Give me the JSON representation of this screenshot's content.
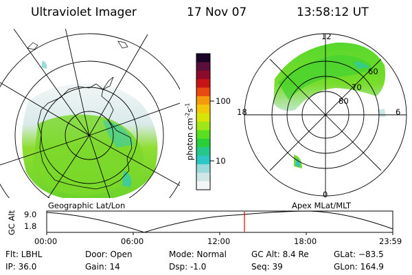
{
  "header": {
    "instrument": "Ultraviolet Imager",
    "date": "17 Nov 07",
    "time": "13:58:12 UT"
  },
  "left_panel": {
    "caption": "Geographic Lat/Lon"
  },
  "right_panel": {
    "caption": "Apex MLat/MLT",
    "mlt_labels": {
      "top": "12",
      "left": "18",
      "right": "6",
      "bottom": "0"
    },
    "mlat_labels": [
      "60",
      "70",
      "80"
    ]
  },
  "colorbar": {
    "unit_label": "photon cm",
    "unit_exp1": "-2",
    "unit_s": "s",
    "unit_exp2": "-1",
    "ticks": [
      "100",
      "10"
    ],
    "colors": [
      "#1a0428",
      "#5a0f3a",
      "#8c0a2a",
      "#c81414",
      "#e84a10",
      "#f59a0a",
      "#f3c80a",
      "#d6e40a",
      "#9ee616",
      "#5ade20",
      "#2ad03a",
      "#24c88c",
      "#2cc6c6",
      "#9adada",
      "#cfe6e6",
      "#f2f6f6"
    ],
    "accent": "#2cc6c6"
  },
  "altitude_plot": {
    "y_label": "GC Alt",
    "y_ticks": [
      "9.0",
      "1.8"
    ],
    "x_ticks": [
      "00:00",
      "06:00",
      "12:00",
      "18:00",
      "23:59"
    ],
    "marker_color": "#e00000"
  },
  "footer": {
    "flt": "Flt: LBHL",
    "ip": "IP: 36.0",
    "door": "Door: Open",
    "gain": "Gain: 14",
    "mode": "Mode: Normal",
    "dsp": "Dsp:    -1.0",
    "gc_alt": "GC Alt: 8.4 Re",
    "seq": "Seq: 39",
    "glat": "GLat: −83.5",
    "glon": "GLon: 164.9"
  }
}
